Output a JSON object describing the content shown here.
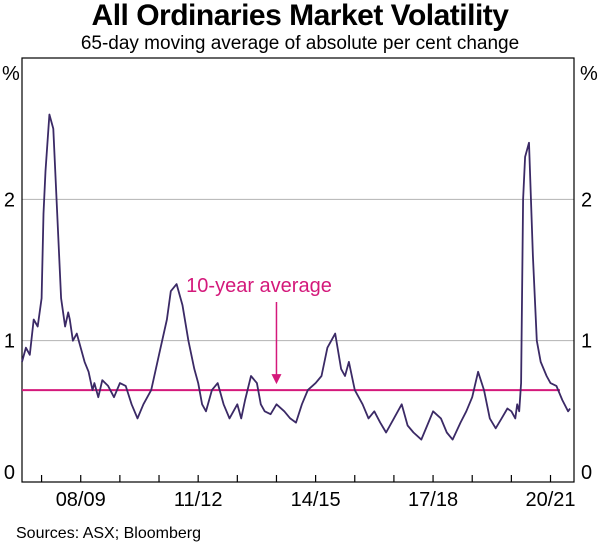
{
  "chart_data": {
    "type": "line",
    "title": "All Ordinaries Market Volatility",
    "subtitle": "65-day moving average of absolute per cent change",
    "ylabel_left": "%",
    "ylabel_right": "%",
    "ylim": [
      0,
      3
    ],
    "yticks": [
      0,
      1,
      2
    ],
    "grid": true,
    "xlim": [
      2007.5,
      2021.6
    ],
    "xtick_labels": [
      "08/09",
      "11/12",
      "14/15",
      "17/18",
      "20/21"
    ],
    "xtick_label_centers": [
      2009.0,
      2012.0,
      2015.0,
      2018.0,
      2021.0
    ],
    "year_boundaries": [
      2008,
      2009,
      2010,
      2011,
      2012,
      2013,
      2014,
      2015,
      2016,
      2017,
      2018,
      2019,
      2020,
      2021
    ],
    "series": [
      {
        "name": "All Ordinaries volatility",
        "color": "#3b2a66",
        "x": [
          2007.5,
          2007.6,
          2007.7,
          2007.8,
          2007.9,
          2008.0,
          2008.05,
          2008.1,
          2008.2,
          2008.3,
          2008.4,
          2008.5,
          2008.6,
          2008.68,
          2008.72,
          2008.8,
          2008.9,
          2009.0,
          2009.1,
          2009.2,
          2009.3,
          2009.35,
          2009.45,
          2009.55,
          2009.7,
          2009.85,
          2010.0,
          2010.15,
          2010.3,
          2010.45,
          2010.6,
          2010.8,
          2011.0,
          2011.2,
          2011.3,
          2011.45,
          2011.6,
          2011.75,
          2011.9,
          2012.0,
          2012.1,
          2012.2,
          2012.35,
          2012.5,
          2012.65,
          2012.8,
          2013.0,
          2013.1,
          2013.2,
          2013.35,
          2013.5,
          2013.6,
          2013.7,
          2013.85,
          2014.0,
          2014.2,
          2014.35,
          2014.5,
          2014.65,
          2014.8,
          2015.0,
          2015.15,
          2015.3,
          2015.5,
          2015.65,
          2015.75,
          2015.85,
          2016.0,
          2016.2,
          2016.35,
          2016.5,
          2016.65,
          2016.8,
          2017.0,
          2017.2,
          2017.35,
          2017.5,
          2017.7,
          2017.85,
          2018.0,
          2018.2,
          2018.35,
          2018.5,
          2018.7,
          2018.85,
          2019.0,
          2019.15,
          2019.3,
          2019.45,
          2019.6,
          2019.75,
          2019.9,
          2020.0,
          2020.1,
          2020.15,
          2020.2,
          2020.25,
          2020.3,
          2020.35,
          2020.45,
          2020.55,
          2020.65,
          2020.75,
          2020.9,
          2021.0,
          2021.15,
          2021.3,
          2021.45,
          2021.5
        ],
        "values": [
          0.85,
          0.95,
          0.9,
          1.15,
          1.1,
          1.3,
          1.9,
          2.2,
          2.6,
          2.5,
          1.9,
          1.3,
          1.1,
          1.2,
          1.15,
          1.0,
          1.05,
          0.95,
          0.85,
          0.78,
          0.65,
          0.7,
          0.6,
          0.72,
          0.68,
          0.6,
          0.7,
          0.68,
          0.55,
          0.45,
          0.55,
          0.65,
          0.9,
          1.15,
          1.35,
          1.4,
          1.25,
          1.0,
          0.8,
          0.7,
          0.55,
          0.5,
          0.65,
          0.7,
          0.55,
          0.45,
          0.55,
          0.45,
          0.58,
          0.75,
          0.7,
          0.55,
          0.5,
          0.48,
          0.55,
          0.5,
          0.45,
          0.42,
          0.55,
          0.65,
          0.7,
          0.75,
          0.95,
          1.05,
          0.8,
          0.75,
          0.85,
          0.65,
          0.55,
          0.45,
          0.5,
          0.42,
          0.35,
          0.45,
          0.55,
          0.4,
          0.35,
          0.3,
          0.4,
          0.5,
          0.45,
          0.35,
          0.3,
          0.42,
          0.5,
          0.6,
          0.78,
          0.65,
          0.45,
          0.38,
          0.45,
          0.52,
          0.5,
          0.45,
          0.55,
          0.5,
          0.7,
          2.0,
          2.3,
          2.4,
          1.6,
          1.0,
          0.85,
          0.75,
          0.7,
          0.68,
          0.58,
          0.5,
          0.52
        ]
      }
    ],
    "reference_line": {
      "label": "10-year average",
      "value": 0.65,
      "color": "#d4197b",
      "arrow_x": 2014.0
    }
  },
  "source": "Sources: ASX; Bloomberg"
}
